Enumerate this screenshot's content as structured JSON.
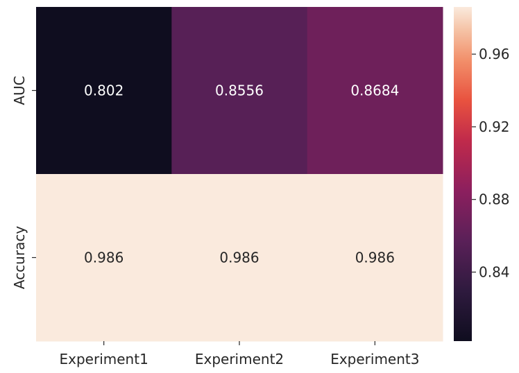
{
  "chart_data": {
    "type": "heatmap",
    "title": "",
    "xlabel": "",
    "ylabel": "",
    "x_categories": [
      "Experiment1",
      "Experiment2",
      "Experiment3"
    ],
    "y_categories": [
      "AUC",
      "Accuracy"
    ],
    "values": [
      [
        0.802,
        0.8556,
        0.8684
      ],
      [
        0.986,
        0.986,
        0.986
      ]
    ],
    "cell_labels": [
      [
        "0.802",
        "0.8556",
        "0.8684"
      ],
      [
        "0.986",
        "0.986",
        "0.986"
      ]
    ],
    "colormap": "rocket",
    "colorbar": {
      "range": [
        0.802,
        0.986
      ],
      "ticks": [
        0.84,
        0.88,
        0.92,
        0.96
      ],
      "tick_labels": [
        "0.84",
        "0.88",
        "0.92",
        "0.96"
      ]
    },
    "grid": false
  }
}
